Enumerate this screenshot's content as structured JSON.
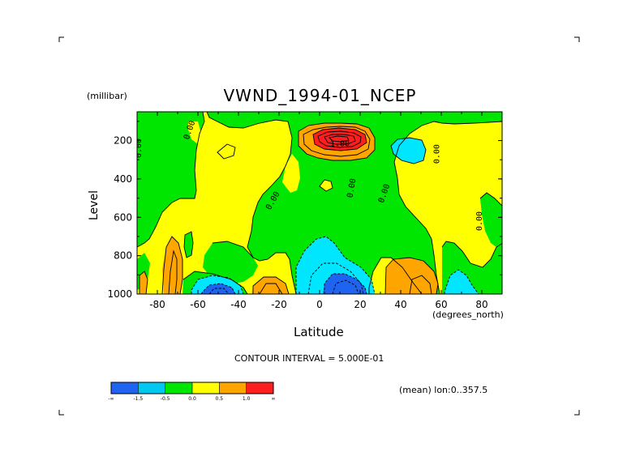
{
  "chart_data": {
    "type": "heatmap",
    "title": "VWND_1994-01_NCEP",
    "xlabel": "Latitude",
    "ylabel": "Level",
    "x_unit": "(degrees_north)",
    "y_unit": "(millibar)",
    "xlim": [
      -90,
      90
    ],
    "ylim": [
      1000,
      50
    ],
    "x_ticks": [
      -80,
      -60,
      -40,
      -20,
      0,
      20,
      40,
      60,
      80
    ],
    "y_ticks": [
      200,
      400,
      600,
      800,
      1000
    ],
    "contour_interval_text": "CONTOUR INTERVAL = 5.000E-01",
    "mean_text": "(mean) lon:0..357.5",
    "contour_labels": [
      {
        "lat": -63,
        "lev": 150,
        "text": "0.00",
        "angle": -70
      },
      {
        "lat": -88,
        "lev": 240,
        "text": "0.00",
        "angle": -90
      },
      {
        "lat": -22,
        "lev": 520,
        "text": "0.00",
        "angle": -60
      },
      {
        "lat": 10,
        "lev": 230,
        "text": "1.00",
        "angle": 0
      },
      {
        "lat": 17,
        "lev": 450,
        "text": "0.00",
        "angle": -80
      },
      {
        "lat": 33,
        "lev": 480,
        "text": "0.00",
        "angle": -70
      },
      {
        "lat": 59,
        "lev": 270,
        "text": "0.00",
        "angle": -90
      },
      {
        "lat": 80,
        "lev": 620,
        "text": "0.00",
        "angle": -90
      }
    ],
    "colorbar": {
      "colors": [
        "#1e64f0",
        "#00c8f0",
        "#00e600",
        "#ffff00",
        "#ffa500",
        "#ff1e1e"
      ],
      "labels": [
        "-∞",
        "-1.5",
        "-0.5",
        "0.0",
        "0.5",
        "1.0",
        "∞"
      ]
    },
    "fill_colors": {
      "blue": "#1e64f0",
      "cyan": "#00e6ff",
      "green": "#00e600",
      "yellow": "#ffff00",
      "orange": "#ffa500",
      "red": "#ff1e1e"
    }
  }
}
